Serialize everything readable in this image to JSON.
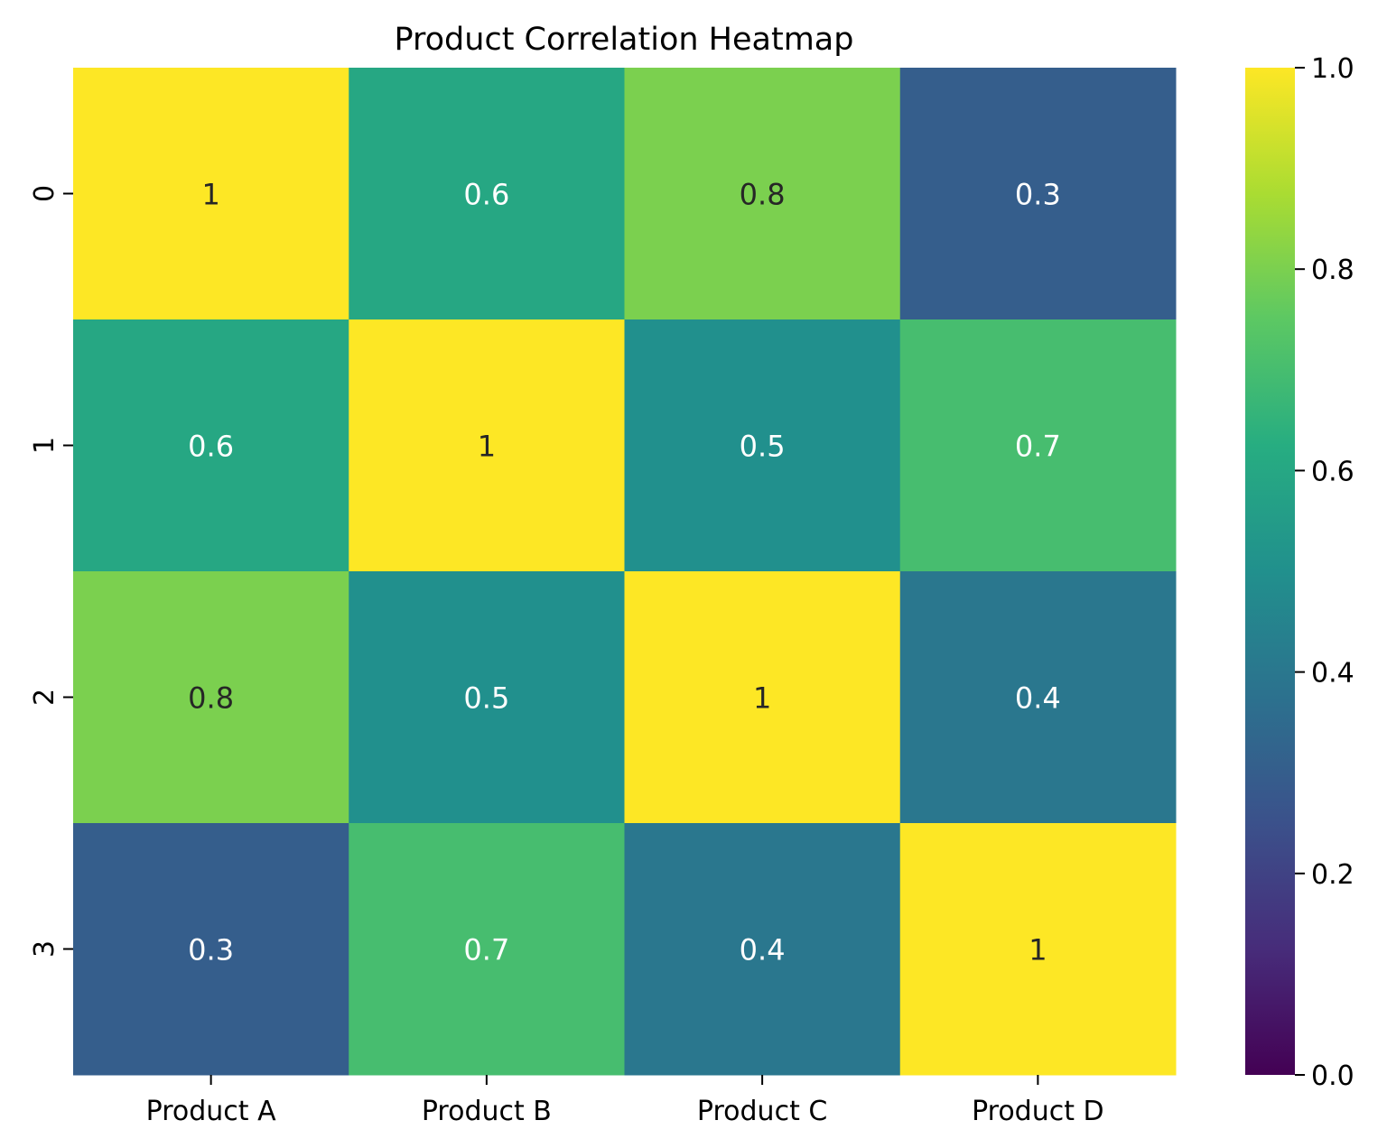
{
  "chart_data": {
    "type": "heatmap",
    "title": "Product Correlation Heatmap",
    "xlabel": "",
    "ylabel": "",
    "x_categories": [
      "Product A",
      "Product B",
      "Product C",
      "Product D"
    ],
    "y_categories": [
      "0",
      "1",
      "2",
      "3"
    ],
    "values": [
      [
        1,
        0.6,
        0.8,
        0.3
      ],
      [
        0.6,
        1,
        0.5,
        0.7
      ],
      [
        0.8,
        0.5,
        1,
        0.4
      ],
      [
        0.3,
        0.7,
        0.4,
        1
      ]
    ],
    "value_labels": [
      [
        "1",
        "0.6",
        "0.8",
        "0.3"
      ],
      [
        "0.6",
        "1",
        "0.5",
        "0.7"
      ],
      [
        "0.8",
        "0.5",
        "1",
        "0.4"
      ],
      [
        "0.3",
        "0.7",
        "0.4",
        "1"
      ]
    ],
    "colormap": "viridis",
    "vmin": 0,
    "vmax": 1,
    "colorbar_ticks": [
      "0.0",
      "0.2",
      "0.4",
      "0.6",
      "0.8",
      "1.0"
    ],
    "colorbar_tick_values": [
      0,
      0.2,
      0.4,
      0.6,
      0.8,
      1.0
    ],
    "annotation_colors": {
      "light": "#ffffff",
      "dark": "#262626"
    }
  }
}
